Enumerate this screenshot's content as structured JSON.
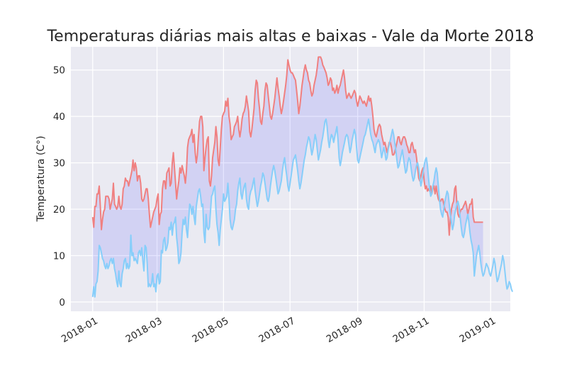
{
  "chart_data": {
    "type": "line",
    "title": "Temperaturas diárias mais altas e baixas - Vale da Morte 2018",
    "xlabel": "",
    "ylabel": "Temperatura (C°)",
    "x_start": "2018-01-01",
    "x_end": "2018-12-31",
    "xlim": [
      "2017-12-12",
      "2019-01-19"
    ],
    "ylim": [
      -2,
      55
    ],
    "x_ticks": [
      "2018-01",
      "2018-03",
      "2018-05",
      "2018-07",
      "2018-09",
      "2018-11",
      "2019-01"
    ],
    "y_ticks": [
      0,
      10,
      20,
      30,
      40,
      50
    ],
    "grid": true,
    "fill_between": {
      "color": "#0000ff",
      "alpha": 0.1
    },
    "series": [
      {
        "name": "",
        "color": "#f08080",
        "values": [
          18.3,
          16.1,
          20.6,
          20.6,
          23.3,
          23.3,
          25,
          20.6,
          15.6,
          17.8,
          19.4,
          20,
          22.8,
          22.8,
          22.8,
          22.2,
          20,
          21.1,
          22.2,
          25.6,
          21.1,
          20.6,
          20,
          20.6,
          22.8,
          20.6,
          20,
          21.1,
          24.4,
          25,
          26.7,
          26.1,
          26.1,
          25,
          26.1,
          27.2,
          28.3,
          30.6,
          28.3,
          30,
          28.9,
          26.1,
          27.2,
          27.2,
          25.6,
          22.2,
          21.7,
          22.2,
          23.3,
          24.4,
          24.4,
          22.2,
          18.9,
          16.1,
          17.2,
          18.3,
          19.4,
          20,
          20.6,
          22.2,
          23.3,
          16.7,
          18.9,
          19.4,
          24.4,
          26.1,
          26.1,
          24.4,
          27.8,
          28.3,
          28.9,
          25,
          25.6,
          30,
          32.2,
          28.9,
          25.6,
          22.2,
          24.4,
          26.1,
          28.9,
          27.8,
          29.4,
          28.3,
          27.2,
          25.6,
          28.3,
          33.3,
          35,
          35.6,
          36.1,
          37.2,
          34.4,
          36.1,
          32.2,
          30,
          31.7,
          35.6,
          38.9,
          40,
          40,
          37.8,
          28.3,
          31.1,
          33.3,
          35,
          35.6,
          26.1,
          25,
          27.2,
          31.1,
          32.8,
          34.4,
          37.8,
          35.6,
          30.6,
          29.4,
          33.3,
          37.2,
          40,
          40.6,
          41.1,
          43.3,
          42.2,
          43.9,
          40,
          38.3,
          35,
          35.6,
          36.1,
          37.8,
          38.3,
          38.9,
          40,
          37.2,
          35.6,
          37.2,
          39.4,
          40.6,
          41.1,
          42.2,
          44.4,
          42.8,
          41.1,
          36.7,
          35.6,
          37.2,
          39.4,
          41.7,
          45.6,
          47.8,
          47.2,
          43.9,
          41.7,
          38.9,
          38.3,
          40.6,
          42.2,
          45.6,
          47.2,
          46.7,
          44.4,
          42.2,
          40,
          39.4,
          40.6,
          42.2,
          43.9,
          46.1,
          48.3,
          46.1,
          44.4,
          42.2,
          40.6,
          41.7,
          43.3,
          45,
          46.7,
          48.9,
          52.2,
          51.1,
          50,
          49.4,
          49.4,
          48.9,
          48.3,
          47.8,
          45.6,
          43.3,
          40.6,
          42.2,
          44.4,
          46.7,
          48.3,
          50,
          51.1,
          50,
          49.4,
          47.8,
          47.2,
          45.6,
          44.4,
          45,
          46.7,
          47.8,
          48.9,
          50.6,
          52.8,
          52.8,
          52.8,
          52.2,
          51.1,
          50.6,
          50,
          49.4,
          48.3,
          46.7,
          47.2,
          48.3,
          47.8,
          45.6,
          46.1,
          45,
          45.6,
          46.7,
          45,
          46.1,
          46.7,
          47.8,
          48.9,
          50,
          48.3,
          45.6,
          43.9,
          44.4,
          45,
          44.4,
          43.9,
          44.4,
          45,
          45.6,
          45,
          43.3,
          42.2,
          43.3,
          44.4,
          43.9,
          43.3,
          42.8,
          43.3,
          42.8,
          42.2,
          43.3,
          44.4,
          43.3,
          43.9,
          42.2,
          40,
          37.2,
          36.1,
          35.6,
          36.7,
          37.8,
          38.3,
          37.8,
          36.1,
          35,
          33.9,
          34.4,
          33.3,
          32.2,
          33.3,
          34.4,
          34.4,
          33.3,
          31.7,
          31.7,
          32.2,
          33.3,
          34.4,
          35.6,
          35.6,
          34.4,
          33.9,
          35,
          35.6,
          35.6,
          35,
          33.9,
          33.3,
          32.2,
          32.2,
          33.9,
          34.4,
          33.3,
          32.2,
          32.8,
          31.1,
          28.9,
          26.7,
          26.1,
          27.2,
          28.3,
          28.9,
          26.1,
          24.4,
          25,
          23.9,
          24.4,
          23.9,
          25,
          23.3,
          24.4,
          25,
          23.3,
          25,
          23.3,
          22.2,
          21.7,
          21.7,
          22.2,
          22.2,
          21.1,
          20,
          19.4,
          19.4,
          18.3,
          14.4,
          17.8,
          20,
          21.1,
          21.7,
          24.4,
          25,
          21.1,
          18.9,
          18.3,
          19.4,
          20,
          20,
          20.6,
          21.1,
          21.7,
          20.6,
          18.9,
          20,
          21.1,
          21.1,
          22.2,
          18.3,
          17.2,
          17.2,
          17.2,
          17.2,
          17.2,
          17.2,
          17.2,
          17.2,
          17.2
        ]
      },
      {
        "name": "",
        "color": "#87cefa",
        "values": [
          1.1,
          3.3,
          1.1,
          3.9,
          4.4,
          6.7,
          12.2,
          11.7,
          10.6,
          9.4,
          8.9,
          7.8,
          7.2,
          8.3,
          7.2,
          7.8,
          8.9,
          9.4,
          8.3,
          9.4,
          7.2,
          6.1,
          4.4,
          3.3,
          6.7,
          3.9,
          3.3,
          6.1,
          7.2,
          8.9,
          9.4,
          7.2,
          8.3,
          7.2,
          7.8,
          14.4,
          10,
          10.6,
          8.9,
          9.4,
          8.9,
          8.3,
          10.6,
          11.1,
          10,
          11.7,
          8.9,
          6.7,
          12.2,
          11.7,
          8.3,
          3.3,
          3.9,
          3.3,
          3.9,
          6.1,
          3.3,
          3.9,
          2.2,
          5.6,
          6.1,
          3.9,
          4.4,
          11.1,
          10.6,
          13.3,
          13.9,
          11.1,
          11.7,
          12.8,
          16.1,
          15.6,
          17.2,
          14.4,
          16.7,
          17.2,
          18.3,
          13.9,
          11.7,
          8.3,
          8.9,
          10.6,
          15,
          17.8,
          16.7,
          18.3,
          15.6,
          13.9,
          17.8,
          21.1,
          20.6,
          18.9,
          20.6,
          18.3,
          16.7,
          20.6,
          22.2,
          23.9,
          24.4,
          22.8,
          20.6,
          21.1,
          15,
          12.8,
          18.9,
          16.1,
          15.6,
          16.1,
          19.4,
          22.8,
          23.3,
          24.4,
          25,
          20,
          16.7,
          15,
          12.2,
          15.6,
          17.8,
          20,
          23.3,
          21.7,
          22.2,
          22.8,
          25.6,
          22.2,
          17.8,
          16.1,
          15.6,
          16.7,
          17.8,
          20,
          21.1,
          23.9,
          25.6,
          26.7,
          23.3,
          22.2,
          23.9,
          25,
          25.6,
          22.2,
          20.6,
          20,
          22.8,
          23.9,
          24.4,
          25.6,
          26.7,
          23.9,
          22.2,
          20.6,
          21.7,
          23.3,
          25,
          26.1,
          27.8,
          27.2,
          25.6,
          23.9,
          22.2,
          21.7,
          22.8,
          25,
          26.7,
          28.3,
          29.4,
          28.3,
          26.7,
          25,
          23.3,
          23.9,
          25,
          26.1,
          28.3,
          30,
          31.1,
          28.9,
          27.2,
          25,
          23.9,
          25.6,
          27.2,
          28.9,
          30.6,
          31.1,
          31.7,
          30,
          28.3,
          26.1,
          24.4,
          25.6,
          27.2,
          28.9,
          30.6,
          31.7,
          33.3,
          34.4,
          35.6,
          35,
          33.3,
          31.7,
          32.8,
          34.4,
          36.1,
          35,
          32.8,
          30.6,
          31.7,
          32.8,
          34.4,
          35.6,
          37.2,
          38.9,
          39.4,
          37.8,
          35,
          33.3,
          35,
          36.1,
          35.6,
          34.4,
          35.6,
          36.7,
          37.8,
          35,
          31.1,
          29.4,
          30.6,
          32.2,
          33.3,
          34.4,
          35.6,
          36.1,
          35.6,
          33.9,
          32.2,
          33.3,
          35,
          36.1,
          37.2,
          36.1,
          33.3,
          30.6,
          30,
          31.1,
          32.2,
          33.3,
          34.4,
          35.6,
          36.1,
          37.2,
          38.3,
          39.4,
          37.8,
          36.1,
          35,
          34.4,
          33.3,
          32.2,
          33.9,
          34.4,
          35,
          34.4,
          32.8,
          31.1,
          32.2,
          33.3,
          32.2,
          30.6,
          31.1,
          32.8,
          33.9,
          35,
          36.1,
          37.2,
          36.1,
          34.4,
          32.8,
          30.6,
          28.9,
          29.4,
          30.6,
          31.7,
          32.8,
          31.1,
          29.4,
          27.8,
          28.3,
          30,
          31.1,
          30.6,
          28.9,
          27.2,
          26.1,
          26.7,
          28.3,
          29.4,
          30,
          28.9,
          26.7,
          25,
          26.1,
          27.8,
          29.4,
          30.6,
          31.1,
          29.4,
          26.7,
          24.4,
          22.8,
          23.3,
          25,
          26.1,
          27.8,
          28.9,
          27.8,
          25,
          22.2,
          20,
          18.9,
          18.3,
          20,
          21.7,
          22.8,
          23.9,
          23.3,
          21.1,
          18.9,
          17.2,
          15.6,
          16.7,
          18.9,
          20,
          21.1,
          21.7,
          20.6,
          18.3,
          16.1,
          14.4,
          13.9,
          15,
          16.7,
          17.8,
          18.9,
          17.2,
          15,
          13.3,
          12.2,
          10.6,
          5.6,
          7.8,
          10,
          11.1,
          12.2,
          10.6,
          8.3,
          6.7,
          5.6,
          6.1,
          7.2,
          8.3,
          7.8,
          7.2,
          6.1,
          5.6,
          6.7,
          7.8,
          9.4,
          8.3,
          6.1,
          4.4,
          5,
          6.1,
          7.2,
          8.3,
          10,
          8.9,
          6.7,
          4.4,
          2.8,
          3.3,
          4.4,
          3.9,
          2.8,
          2.2
        ]
      }
    ]
  }
}
